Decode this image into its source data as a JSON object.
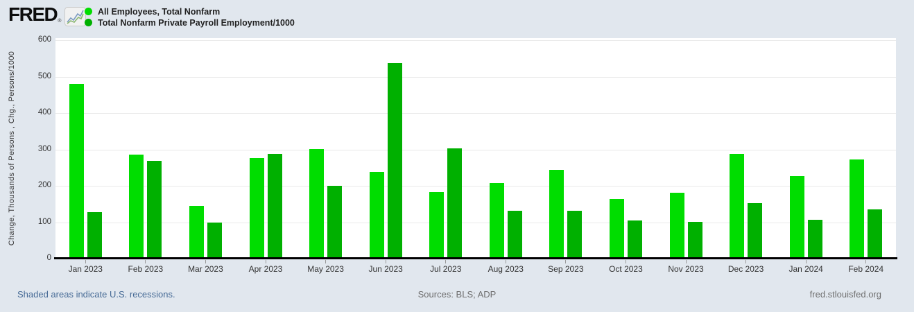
{
  "header": {
    "logo": {
      "text": "FRED",
      "reg": "®"
    },
    "legend": [
      {
        "label": "All Employees, Total Nonfarm",
        "color": "#00dd00"
      },
      {
        "label": "Total Nonfarm Private Payroll Employment/1000",
        "color": "#00b000"
      }
    ]
  },
  "chart_data": {
    "type": "bar",
    "title": "",
    "xlabel": "",
    "ylabel": "Change, Thousands of Persons , Chg., Persons/1000",
    "ylim": [
      0,
      600
    ],
    "ytick_step": 100,
    "grid": true,
    "legend_position": "top-left",
    "categories": [
      "Jan 2023",
      "Feb 2023",
      "Mar 2023",
      "Apr 2023",
      "May 2023",
      "Jun 2023",
      "Jul 2023",
      "Aug 2023",
      "Sep 2023",
      "Oct 2023",
      "Nov 2023",
      "Dec 2023",
      "Jan 2024",
      "Feb 2024"
    ],
    "series": [
      {
        "name": "All Employees, Total Nonfarm",
        "color": "#00dd00",
        "values": [
          482,
          287,
          146,
          278,
          303,
          240,
          184,
          210,
          246,
          165,
          182,
          290,
          229,
          275
        ]
      },
      {
        "name": "Total Nonfarm Private Payroll Employment/1000",
        "color": "#00b000",
        "values": [
          130,
          270,
          101,
          289,
          201,
          539,
          304,
          133,
          134,
          107,
          103,
          155,
          108,
          138
        ]
      }
    ]
  },
  "footer": {
    "recession_note": "Shaded areas indicate U.S. recessions.",
    "sources": "Sources: BLS; ADP",
    "site": "fred.stlouisfed.org"
  }
}
